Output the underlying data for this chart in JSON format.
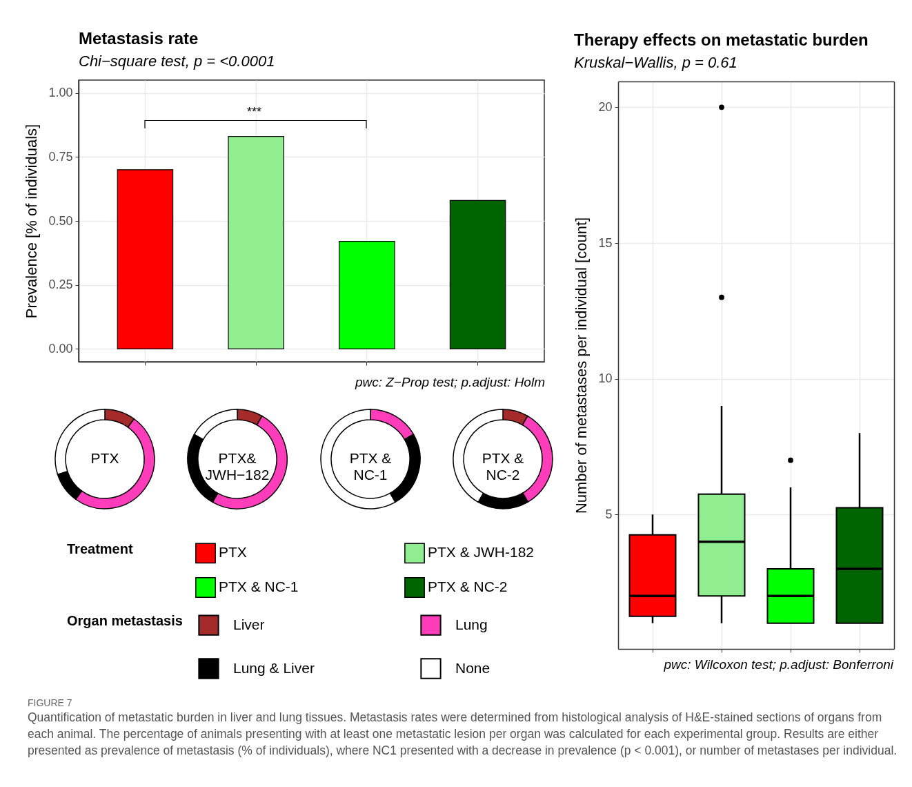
{
  "chart_data": [
    {
      "type": "bar",
      "title": "Metastasis rate",
      "subtitle": "Chi−square test, p = <0.0001",
      "ylabel": "Prevalence [% of individuals]",
      "legend_title": "Treatment",
      "categories": [
        null,
        null,
        null,
        null
      ],
      "stacked": true,
      "series": [
        {
          "name": "PTX",
          "color": "#ff0000",
          "values": [
            0.7,
            null,
            null,
            null
          ]
        },
        {
          "name": "PTX & JWH-182",
          "color": "#90ee90",
          "values": [
            null,
            0.83,
            null,
            null
          ]
        },
        {
          "name": "PTX & NC-1",
          "color": "#00ff00",
          "values": [
            null,
            null,
            0.42,
            null
          ]
        },
        {
          "name": "PTX & NC-2",
          "color": "#006400",
          "values": [
            null,
            null,
            null,
            0.58
          ]
        }
      ],
      "ylim": [
        -0.05,
        1.05
      ],
      "yticks": [
        {
          "value": 0,
          "label": "0.00"
        },
        {
          "value": 0.25,
          "label": "0.25"
        },
        {
          "value": 0.5,
          "label": "0.50"
        },
        {
          "value": 0.75,
          "label": "0.75"
        },
        {
          "value": 1,
          "label": "1.00"
        }
      ],
      "grid": true,
      "legend": "bottom",
      "tick_labels": "y",
      "annotations": [
        "***",
        "pwc: Z−Prop test; p.adjust: Holm",
        "FIGURE 7",
        "Quantification of metastatic burden in liver and lung tissues. Metastasis rates were determined from histological analysis of H&E-stained sections of organs from each animal. The percentage of animals presenting with at least one metastatic lesion per organ was calculated for each experimental group. Results are either presented as prevalence of metastasis (% of individuals), where NC1 presented with a decrease in prevalence (p < 0.001), or number of metastases per individual."
      ]
    },
    {
      "type": "donut",
      "title": "PTX",
      "legend_title": "Organ metastasis",
      "legend": "bottom",
      "categories": [
        "Liver",
        "Lung",
        "Lung & Liver",
        "None"
      ],
      "values": [
        10,
        50,
        10,
        30
      ],
      "colors": [
        "#a52a2a",
        "#ff3dbb",
        "#000000",
        "#ffffff"
      ]
    },
    {
      "type": "donut",
      "title": "PTX&\nJWH−182",
      "categories": [
        null,
        null,
        null,
        null
      ],
      "values": [
        8.3,
        50,
        25,
        16.7
      ],
      "colors": [
        "#a52a2a",
        "#ff3dbb",
        "#000000",
        "#ffffff"
      ]
    },
    {
      "type": "donut",
      "title": "PTX &\nNC-1",
      "categories": [
        null,
        null,
        null,
        null
      ],
      "values": [
        0,
        16.7,
        25,
        58.3
      ],
      "colors": [
        "#a52a2a",
        "#ff3dbb",
        "#000000",
        "#ffffff"
      ]
    },
    {
      "type": "donut",
      "title": "PTX &\nNC-2",
      "categories": [
        null,
        null,
        null,
        null
      ],
      "values": [
        8.3,
        33.3,
        16.7,
        41.7
      ],
      "colors": [
        "#a52a2a",
        "#ff3dbb",
        "#000000",
        "#ffffff"
      ]
    },
    {
      "type": "box",
      "title": "Therapy effects on metastatic burden",
      "subtitle": "Kruskal−Wallis, p = 0.61",
      "ylabel": "Number of metastases per individual [count]",
      "categories": [
        null,
        null,
        null,
        null
      ],
      "colors": [
        "#ff0000",
        "#90ee90",
        "#00ff00",
        "#006400"
      ],
      "boxes": [
        {
          "low": 1,
          "q1": 1.25,
          "median": 2,
          "q3": 4.25,
          "high": 5
        },
        {
          "low": 1,
          "q1": 2,
          "median": 4,
          "q3": 5.75,
          "high": 9,
          "outliers": [
            13,
            20
          ]
        },
        {
          "low": 1,
          "q1": 1,
          "median": 2,
          "q3": 3,
          "high": 6,
          "outliers": [
            7
          ]
        },
        {
          "low": 1,
          "q1": 1,
          "median": 3,
          "q3": 5.25,
          "high": 8
        }
      ],
      "ylim": [
        0.05,
        20.95
      ],
      "yticks": [
        5,
        10,
        15,
        20
      ],
      "grid": true,
      "tick_labels": "y",
      "annotations": [
        "pwc: Wilcoxon test; p.adjust: Bonferroni"
      ]
    }
  ]
}
